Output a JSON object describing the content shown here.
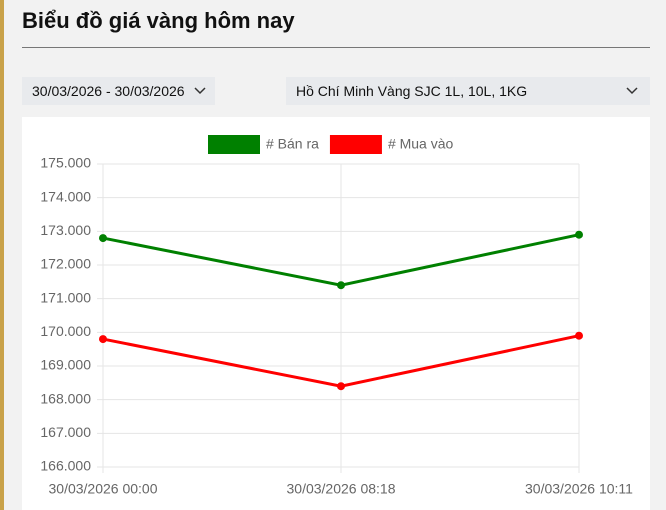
{
  "header": {
    "title": "Biểu đồ giá vàng hôm nay"
  },
  "filters": {
    "date_range": "30/03/2026 - 30/03/2026",
    "product": "Hồ Chí Minh Vàng SJC 1L, 10L, 1KG"
  },
  "chart_data": {
    "type": "line",
    "categories": [
      "30/03/2026 00:00",
      "30/03/2026 08:18",
      "30/03/2026 10:11"
    ],
    "series": [
      {
        "name": "# Bán ra",
        "color": "#008000",
        "values": [
          172800,
          171400,
          172900
        ]
      },
      {
        "name": "# Mua vào",
        "color": "#ff0000",
        "values": [
          169800,
          168400,
          169900
        ]
      }
    ],
    "ylim": [
      166000,
      175000
    ],
    "yticks": [
      {
        "value": 166000,
        "label": "166.000"
      },
      {
        "value": 167000,
        "label": "167.000"
      },
      {
        "value": 168000,
        "label": "168.000"
      },
      {
        "value": 169000,
        "label": "169.000"
      },
      {
        "value": 170000,
        "label": "170.000"
      },
      {
        "value": 171000,
        "label": "171.000"
      },
      {
        "value": 172000,
        "label": "172.000"
      },
      {
        "value": 173000,
        "label": "173.000"
      },
      {
        "value": 174000,
        "label": "174.000"
      },
      {
        "value": 175000,
        "label": "175.000"
      }
    ],
    "grid": true,
    "legend": "top"
  }
}
